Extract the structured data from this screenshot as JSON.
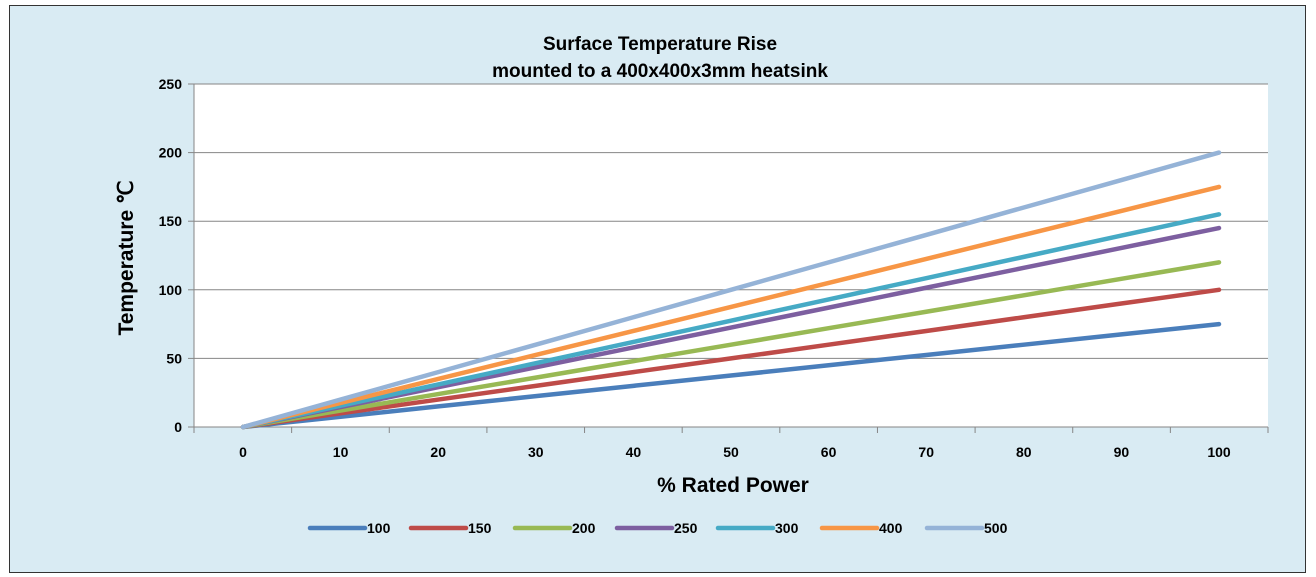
{
  "chart_data": {
    "type": "line",
    "title": "Surface Temperature Rise",
    "subtitle": "mounted to a 400x400x3mm heatsink",
    "xlabel": "% Rated Power",
    "ylabel": "Temperature ℃",
    "x": [
      0,
      10,
      20,
      30,
      40,
      50,
      60,
      70,
      80,
      90,
      100
    ],
    "xlim": [
      0,
      100
    ],
    "ylim": [
      0,
      250
    ],
    "yticks": [
      0,
      50,
      100,
      150,
      200,
      250
    ],
    "grid": true,
    "legend_position": "bottom",
    "series": [
      {
        "name": "100",
        "color": "#4a7ebb",
        "values": [
          0,
          7.5,
          15,
          22.5,
          30,
          37.5,
          45,
          52.5,
          60,
          67.5,
          75
        ]
      },
      {
        "name": "150",
        "color": "#be4b48",
        "values": [
          0,
          10,
          20,
          30,
          40,
          50,
          60,
          70,
          80,
          90,
          100
        ]
      },
      {
        "name": "200",
        "color": "#98b954",
        "values": [
          0,
          12,
          24,
          36,
          48,
          60,
          72,
          84,
          96,
          108,
          120
        ]
      },
      {
        "name": "250",
        "color": "#7d5fa0",
        "values": [
          0,
          14.5,
          29,
          43.5,
          58,
          72.5,
          87,
          101.5,
          116,
          130.5,
          145
        ]
      },
      {
        "name": "300",
        "color": "#46aac5",
        "values": [
          0,
          15.5,
          31,
          46.5,
          62,
          77.5,
          93,
          108.5,
          124,
          139.5,
          155
        ]
      },
      {
        "name": "400",
        "color": "#f79646",
        "values": [
          0,
          17.5,
          35,
          52.5,
          70,
          87.5,
          105,
          122.5,
          140,
          157.5,
          175
        ]
      },
      {
        "name": "500",
        "color": "#95b3d7",
        "values": [
          0,
          20,
          40,
          60,
          80,
          100,
          120,
          140,
          160,
          180,
          200
        ]
      }
    ]
  }
}
